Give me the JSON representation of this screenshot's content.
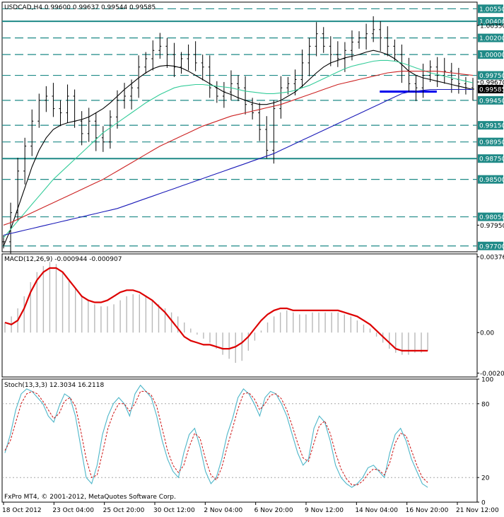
{
  "chart_data": [
    {
      "type": "line",
      "title": "USDCAD,H4  0.99600 0.99637 0.99544 0.99585",
      "ylim": [
        0.9763,
        1.0063
      ],
      "y_ticks": [
        "1.00550",
        "1.00400",
        "1.00350",
        "1.00200",
        "1.00000",
        "0.99750",
        "0.99670",
        "0.99585",
        "0.99450",
        "0.99150",
        "0.98950",
        "0.98750",
        "0.98500",
        "0.98050",
        "0.97950",
        "0.97700"
      ],
      "highlighted_levels": [
        "1.00550",
        "1.00400",
        "1.00200",
        "1.00000",
        "0.99750",
        "0.99450",
        "0.99150",
        "0.98950",
        "0.98750",
        "0.98500",
        "0.98050",
        "0.97700"
      ],
      "current_price": "0.99585",
      "x_ticks": [
        "18 Oct 2012",
        "23 Oct 04:00",
        "25 Oct 20:00",
        "30 Oct 12:00",
        "2 Nov 04:00",
        "6 Nov 20:00",
        "9 Nov 12:00",
        "14 Nov 04:00",
        "16 Nov 20:00",
        "21 Nov 12:00"
      ],
      "level_colors": {
        "solid": "#1f8a87",
        "dashed": "#1f8a87",
        "support": "#0000ee"
      },
      "price_close": [
        0.9775,
        0.981,
        0.986,
        0.989,
        0.992,
        0.9945,
        0.995,
        0.9935,
        0.993,
        0.995,
        0.992,
        0.9905,
        0.992,
        0.99,
        0.9895,
        0.9925,
        0.9945,
        0.995,
        0.996,
        0.9985,
        0.9995,
        1.0005,
        1.001,
        1.0,
        0.9985,
        0.9995,
        1.0,
        0.999,
        0.9985,
        0.996,
        0.995,
        0.9955,
        0.9965,
        0.996,
        0.994,
        0.993,
        0.991,
        0.9885,
        0.9935,
        0.996,
        0.9965,
        0.997,
        0.999,
        1.001,
        1.0025,
        1.001,
        1.0,
        0.9995,
        1.0005,
        1.0015,
        1.002,
        1.0025,
        1.003,
        1.002,
        1.001,
        1.0,
        0.998,
        0.9965,
        0.996,
        0.9975,
        0.9985,
        0.9975,
        0.998,
        0.997,
        0.9965,
        0.996,
        0.99585
      ],
      "series": [
        {
          "name": "",
          "color": "#000000",
          "values": [
            0.977,
            0.979,
            0.9815,
            0.984,
            0.9865,
            0.9885,
            0.99,
            0.991,
            0.9915,
            0.9918,
            0.992,
            0.9922,
            0.9925,
            0.993,
            0.9935,
            0.9942,
            0.995,
            0.9958,
            0.9965,
            0.9972,
            0.9978,
            0.9983,
            0.9986,
            0.9987,
            0.9986,
            0.9984,
            0.998,
            0.9975,
            0.997,
            0.9965,
            0.996,
            0.9955,
            0.9952,
            0.9948,
            0.9945,
            0.9942,
            0.994,
            0.994,
            0.9942,
            0.9945,
            0.995,
            0.9955,
            0.9962,
            0.997,
            0.9978,
            0.9985,
            0.999,
            0.9993,
            0.9996,
            0.9998,
            1.0,
            1.0003,
            1.0005,
            1.0003,
            1.0,
            0.9995,
            0.9988,
            0.998,
            0.9975,
            0.9972,
            0.997,
            0.9968,
            0.9966,
            0.9964,
            0.9962,
            0.996,
            0.9958
          ]
        },
        {
          "name": "",
          "color": "#33cc99",
          "values": [
            0.978,
            0.979,
            0.98,
            0.981,
            0.982,
            0.983,
            0.984,
            0.985,
            0.9858,
            0.9866,
            0.9874,
            0.9882,
            0.989,
            0.9898,
            0.9906,
            0.9912,
            0.9918,
            0.9924,
            0.993,
            0.9936,
            0.9942,
            0.9947,
            0.9952,
            0.9956,
            0.996,
            0.9962,
            0.9963,
            0.9964,
            0.9964,
            0.9963,
            0.9962,
            0.9961,
            0.996,
            0.9958,
            0.9956,
            0.9955,
            0.9954,
            0.9953,
            0.9953,
            0.9954,
            0.9955,
            0.9957,
            0.996,
            0.9963,
            0.9967,
            0.9971,
            0.9975,
            0.9979,
            0.9983,
            0.9986,
            0.9988,
            0.999,
            0.9992,
            0.9993,
            0.9993,
            0.9992,
            0.999,
            0.9987,
            0.9984,
            0.9981,
            0.9978,
            0.9976,
            0.9974,
            0.9972,
            0.997,
            0.9968,
            0.9966
          ]
        },
        {
          "name": "",
          "color": "#cc2222",
          "values": [
            0.9795,
            0.9798,
            0.9802,
            0.9806,
            0.981,
            0.9814,
            0.9818,
            0.9822,
            0.9826,
            0.983,
            0.9834,
            0.9838,
            0.9842,
            0.9846,
            0.985,
            0.9855,
            0.986,
            0.9865,
            0.987,
            0.9875,
            0.988,
            0.9885,
            0.989,
            0.9894,
            0.9898,
            0.9902,
            0.9906,
            0.991,
            0.9914,
            0.9917,
            0.992,
            0.9923,
            0.9926,
            0.9928,
            0.993,
            0.9932,
            0.9934,
            0.9936,
            0.9938,
            0.994,
            0.9943,
            0.9946,
            0.9949,
            0.9952,
            0.9955,
            0.9958,
            0.9961,
            0.9964,
            0.9966,
            0.9968,
            0.997,
            0.9972,
            0.9974,
            0.9976,
            0.9978,
            0.9979,
            0.998,
            0.998,
            0.998,
            0.998,
            0.998,
            0.998,
            0.9979,
            0.9978,
            0.9977,
            0.9976,
            0.9975
          ]
        },
        {
          "name": "",
          "color": "#1a1ab8",
          "values": [
            0.9783,
            0.9785,
            0.9787,
            0.9789,
            0.9791,
            0.9793,
            0.9795,
            0.9797,
            0.9799,
            0.9801,
            0.9803,
            0.9805,
            0.9807,
            0.9809,
            0.9811,
            0.9813,
            0.9815,
            0.9818,
            0.9821,
            0.9824,
            0.9827,
            0.983,
            0.9833,
            0.9836,
            0.9839,
            0.9842,
            0.9845,
            0.9848,
            0.9851,
            0.9854,
            0.9857,
            0.986,
            0.9863,
            0.9866,
            0.9869,
            0.9872,
            0.9875,
            0.9878,
            0.9881,
            0.9885,
            0.9889,
            0.9893,
            0.9897,
            0.9901,
            0.9905,
            0.9909,
            0.9913,
            0.9917,
            0.9921,
            0.9925,
            0.9929,
            0.9933,
            0.9937,
            0.9941,
            0.9945,
            0.9949,
            0.9953,
            0.9955,
            0.9956,
            0.9957,
            0.9958,
            0.9958,
            0.9958,
            0.9958,
            0.9958,
            0.9958,
            0.9958
          ]
        }
      ]
    },
    {
      "type": "bar",
      "title": "MACD(12,26,9) -0.000944 -0.000907",
      "ylim": [
        -0.0022,
        0.0039
      ],
      "y_ticks": [
        "0.00376",
        "0.00",
        "-0.00201"
      ],
      "hist": [
        0.0005,
        0.0008,
        0.0012,
        0.0018,
        0.0025,
        0.003,
        0.0033,
        0.0035,
        0.0034,
        0.003,
        0.0026,
        0.0022,
        0.0018,
        0.0016,
        0.0014,
        0.0013,
        0.0013,
        0.0014,
        0.0016,
        0.0018,
        0.0019,
        0.0019,
        0.0018,
        0.0016,
        0.0014,
        0.0012,
        0.001,
        0.0008,
        0.0005,
        0.0002,
        -0.0001,
        -0.0003,
        -0.0005,
        -0.0008,
        -0.0011,
        -0.0013,
        -0.0015,
        -0.0014,
        -0.0009,
        -0.0004,
        0.0001,
        0.0005,
        0.0008,
        0.001,
        0.0011,
        0.001,
        0.0009,
        0.0009,
        0.001,
        0.001,
        0.001,
        0.001,
        0.001,
        0.0009,
        0.0008,
        0.0006,
        0.0004,
        0.0002,
        -0.0002,
        -0.0005,
        -0.0008,
        -0.001,
        -0.0011,
        -0.0011,
        -0.001,
        -0.001,
        -0.0009
      ],
      "signal": [
        0.0005,
        0.0004,
        0.0006,
        0.0012,
        0.002,
        0.0026,
        0.003,
        0.0032,
        0.0032,
        0.003,
        0.0026,
        0.0022,
        0.0018,
        0.0016,
        0.0015,
        0.0015,
        0.0016,
        0.0018,
        0.002,
        0.0021,
        0.0021,
        0.002,
        0.0018,
        0.0016,
        0.0013,
        0.001,
        0.0006,
        0.0002,
        -0.0002,
        -0.0004,
        -0.0005,
        -0.0006,
        -0.0006,
        -0.0007,
        -0.0008,
        -0.0008,
        -0.0007,
        -0.0005,
        -0.0002,
        0.0002,
        0.0006,
        0.0009,
        0.0011,
        0.0012,
        0.0012,
        0.0011,
        0.0011,
        0.0011,
        0.0011,
        0.0011,
        0.0011,
        0.0011,
        0.0011,
        0.001,
        0.0009,
        0.0008,
        0.0006,
        0.0004,
        0.0001,
        -0.0002,
        -0.0005,
        -0.0008,
        -0.0009,
        -0.0009,
        -0.0009,
        -0.0009,
        -0.0009
      ]
    },
    {
      "type": "line",
      "title": "Stoch(13,3,3) 12.3034 16.2118",
      "ylim": [
        0,
        100
      ],
      "y_ticks": [
        "100",
        "80",
        "20",
        "0"
      ],
      "main": [
        40,
        55,
        75,
        88,
        92,
        90,
        85,
        80,
        70,
        65,
        78,
        88,
        85,
        70,
        45,
        20,
        15,
        30,
        55,
        70,
        80,
        85,
        80,
        70,
        88,
        95,
        90,
        85,
        70,
        50,
        35,
        25,
        20,
        40,
        55,
        60,
        45,
        25,
        15,
        20,
        35,
        55,
        68,
        85,
        92,
        88,
        80,
        70,
        85,
        90,
        88,
        80,
        70,
        55,
        40,
        30,
        35,
        60,
        70,
        65,
        50,
        30,
        20,
        15,
        12,
        15,
        20,
        28,
        30,
        25,
        20,
        40,
        55,
        60,
        50,
        35,
        25,
        15,
        12
      ],
      "signal": [
        42,
        50,
        65,
        80,
        88,
        90,
        88,
        82,
        75,
        68,
        72,
        82,
        85,
        78,
        58,
        35,
        20,
        22,
        40,
        60,
        72,
        80,
        80,
        74,
        80,
        90,
        90,
        87,
        78,
        60,
        42,
        30,
        24,
        30,
        45,
        56,
        52,
        35,
        22,
        18,
        28,
        45,
        60,
        76,
        88,
        89,
        84,
        75,
        80,
        87,
        88,
        84,
        75,
        62,
        48,
        36,
        33,
        48,
        62,
        66,
        56,
        40,
        27,
        19,
        14,
        14,
        17,
        23,
        27,
        26,
        22,
        32,
        48,
        56,
        54,
        42,
        30,
        20,
        16
      ]
    }
  ],
  "footer": {
    "copyright": "FxPro MT4, © 2001-2012, MetaQuotes Software Corp."
  },
  "colors": {
    "axis": "#000000",
    "macd_signal": "#dd0000",
    "macd_hist": "#b8b8b8",
    "stoch_main": "#4db6c9",
    "stoch_signal": "#cc1111"
  }
}
